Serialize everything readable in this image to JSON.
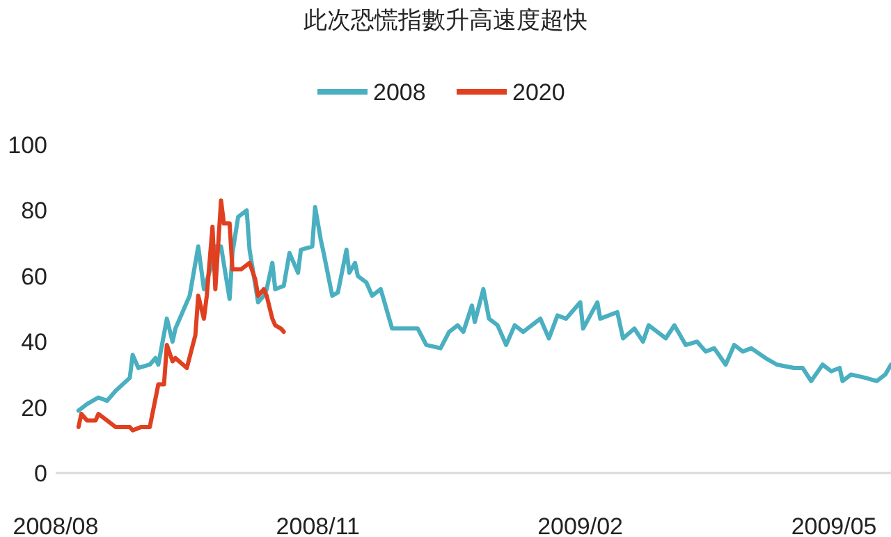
{
  "chart_data": {
    "type": "line",
    "title": "此次恐慌指數升高速度超快",
    "legend": "top",
    "grid": false,
    "xlim": [
      "2008-08-01",
      "2009-05-21"
    ],
    "ylim": [
      0,
      100
    ],
    "xticks": [
      {
        "value": "2008-08-01",
        "label": "2008/08"
      },
      {
        "value": "2008-11-01",
        "label": "2008/11"
      },
      {
        "value": "2009-02-01",
        "label": "2009/02"
      },
      {
        "value": "2009-05-01",
        "label": "2009/05"
      }
    ],
    "yticks": [
      0,
      20,
      40,
      60,
      80,
      100
    ],
    "series": [
      {
        "name": "2008",
        "color": "#4aafc0",
        "x": [
          "2008-08-09",
          "2008-08-12",
          "2008-08-16",
          "2008-08-19",
          "2008-08-22",
          "2008-08-27",
          "2008-08-28",
          "2008-08-30",
          "2008-09-03",
          "2008-09-05",
          "2008-09-06",
          "2008-09-09",
          "2008-09-11",
          "2008-09-12",
          "2008-09-16",
          "2008-09-17",
          "2008-09-20",
          "2008-09-22",
          "2008-09-25",
          "2008-09-26",
          "2008-09-28",
          "2008-10-01",
          "2008-10-02",
          "2008-10-04",
          "2008-10-07",
          "2008-10-08",
          "2008-10-11",
          "2008-10-13",
          "2008-10-14",
          "2008-10-16",
          "2008-10-17",
          "2008-10-20",
          "2008-10-22",
          "2008-10-25",
          "2008-10-26",
          "2008-10-30",
          "2008-10-31",
          "2008-11-02",
          "2008-11-03",
          "2008-11-06",
          "2008-11-08",
          "2008-11-11",
          "2008-11-12",
          "2008-11-14",
          "2008-11-15",
          "2008-11-18",
          "2008-11-20",
          "2008-11-23",
          "2008-11-27",
          "2008-11-30",
          "2008-12-06",
          "2008-12-09",
          "2008-12-14",
          "2008-12-17",
          "2008-12-20",
          "2008-12-22",
          "2008-12-25",
          "2008-12-26",
          "2008-12-29",
          "2008-12-31",
          "2009-01-03",
          "2009-01-06",
          "2009-01-09",
          "2009-01-12",
          "2009-01-18",
          "2009-01-21",
          "2009-01-24",
          "2009-01-27",
          "2009-02-01",
          "2009-02-02",
          "2009-02-07",
          "2009-02-08",
          "2009-02-14",
          "2009-02-16",
          "2009-02-20",
          "2009-02-23",
          "2009-02-25",
          "2009-03-03",
          "2009-03-06",
          "2009-03-10",
          "2009-03-14",
          "2009-03-17",
          "2009-03-20",
          "2009-03-24",
          "2009-03-27",
          "2009-03-30",
          "2009-04-02",
          "2009-04-07",
          "2009-04-11",
          "2009-04-17",
          "2009-04-20",
          "2009-04-23",
          "2009-04-27",
          "2009-04-30",
          "2009-05-03",
          "2009-05-04",
          "2009-05-07",
          "2009-05-12",
          "2009-05-16",
          "2009-05-19",
          "2009-05-21"
        ],
        "values": [
          19,
          21,
          23,
          22,
          25,
          29,
          36,
          32,
          33,
          35,
          33,
          47,
          40,
          44,
          52,
          54,
          69,
          56,
          64,
          69,
          69,
          53,
          67,
          78,
          80,
          68,
          52,
          54,
          56,
          64,
          56,
          57,
          67,
          61,
          68,
          69,
          81,
          71,
          67,
          54,
          55,
          68,
          61,
          64,
          60,
          58,
          54,
          56,
          44,
          44,
          44,
          39,
          38,
          43,
          45,
          43,
          51,
          46,
          56,
          47,
          45,
          39,
          45,
          43,
          47,
          41,
          48,
          47,
          52,
          44,
          52,
          47,
          49,
          41,
          44,
          40,
          45,
          41,
          45,
          39,
          40,
          37,
          38,
          33,
          39,
          37,
          38,
          35,
          33,
          32,
          32,
          28,
          33,
          31,
          32,
          28,
          30,
          29,
          28,
          30,
          33
        ]
      },
      {
        "name": "2020",
        "color": "#e04020",
        "x": [
          "2008-08-09",
          "2008-08-10",
          "2008-08-12",
          "2008-08-15",
          "2008-08-16",
          "2008-08-19",
          "2008-08-22",
          "2008-08-27",
          "2008-08-28",
          "2008-08-31",
          "2008-09-03",
          "2008-09-06",
          "2008-09-08",
          "2008-09-09",
          "2008-09-11",
          "2008-09-12",
          "2008-09-16",
          "2008-09-19",
          "2008-09-20",
          "2008-09-22",
          "2008-09-23",
          "2008-09-25",
          "2008-09-26",
          "2008-09-28",
          "2008-09-29",
          "2008-10-01",
          "2008-10-02",
          "2008-10-05",
          "2008-10-08",
          "2008-10-10",
          "2008-10-11",
          "2008-10-13",
          "2008-10-14",
          "2008-10-16",
          "2008-10-17",
          "2008-10-19",
          "2008-10-20"
        ],
        "values": [
          14,
          18,
          16,
          16,
          18,
          16,
          14,
          14,
          13,
          14,
          14,
          27,
          27,
          39,
          34,
          35,
          32,
          42,
          54,
          47,
          54,
          75,
          56,
          83,
          76,
          76,
          62,
          62,
          64,
          59,
          54,
          56,
          54,
          47,
          45,
          44,
          43
        ]
      }
    ]
  }
}
